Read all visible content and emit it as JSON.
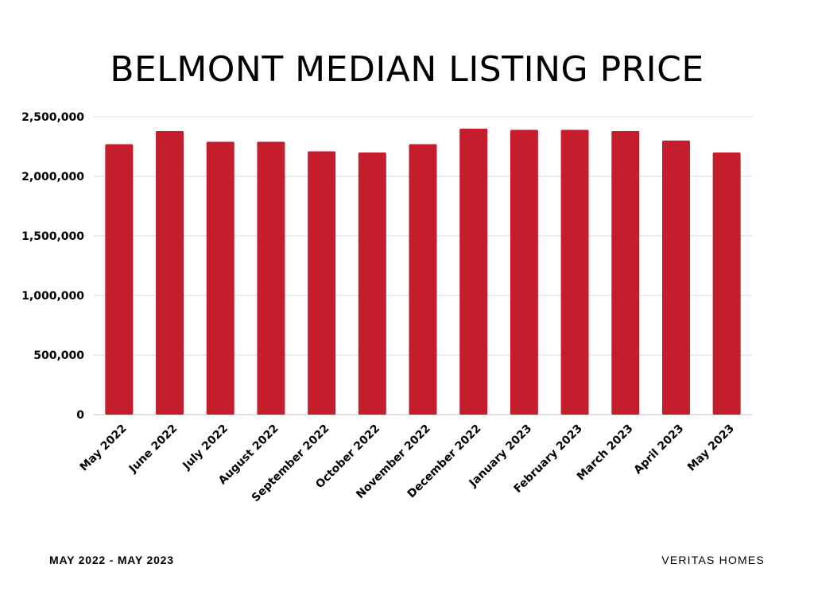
{
  "chart_data": {
    "type": "bar",
    "title": "BELMONT MEDIAN LISTING PRICE",
    "categories": [
      "May 2022",
      "June 2022",
      "July 2022",
      "August 2022",
      "September 2022",
      "October 2022",
      "November 2022",
      "December 2022",
      "January 2023",
      "February 2023",
      "March 2023",
      "April 2023",
      "May 2023"
    ],
    "values": [
      2270000,
      2380000,
      2290000,
      2290000,
      2210000,
      2200000,
      2270000,
      2400000,
      2390000,
      2390000,
      2380000,
      2300000,
      2200000
    ],
    "y_ticks": [
      "0",
      "500,000",
      "1,000,000",
      "1,500,000",
      "2,000,000",
      "2,500,000"
    ],
    "ylim": [
      0,
      2500000
    ],
    "xlabel": "",
    "ylabel": "",
    "grid": true,
    "bar_color": "#c41e2d",
    "grid_color": "#d9d9d9"
  },
  "footer": {
    "date_range": "MAY 2022 - MAY 2023",
    "brand": "VERITAS HOMES"
  }
}
